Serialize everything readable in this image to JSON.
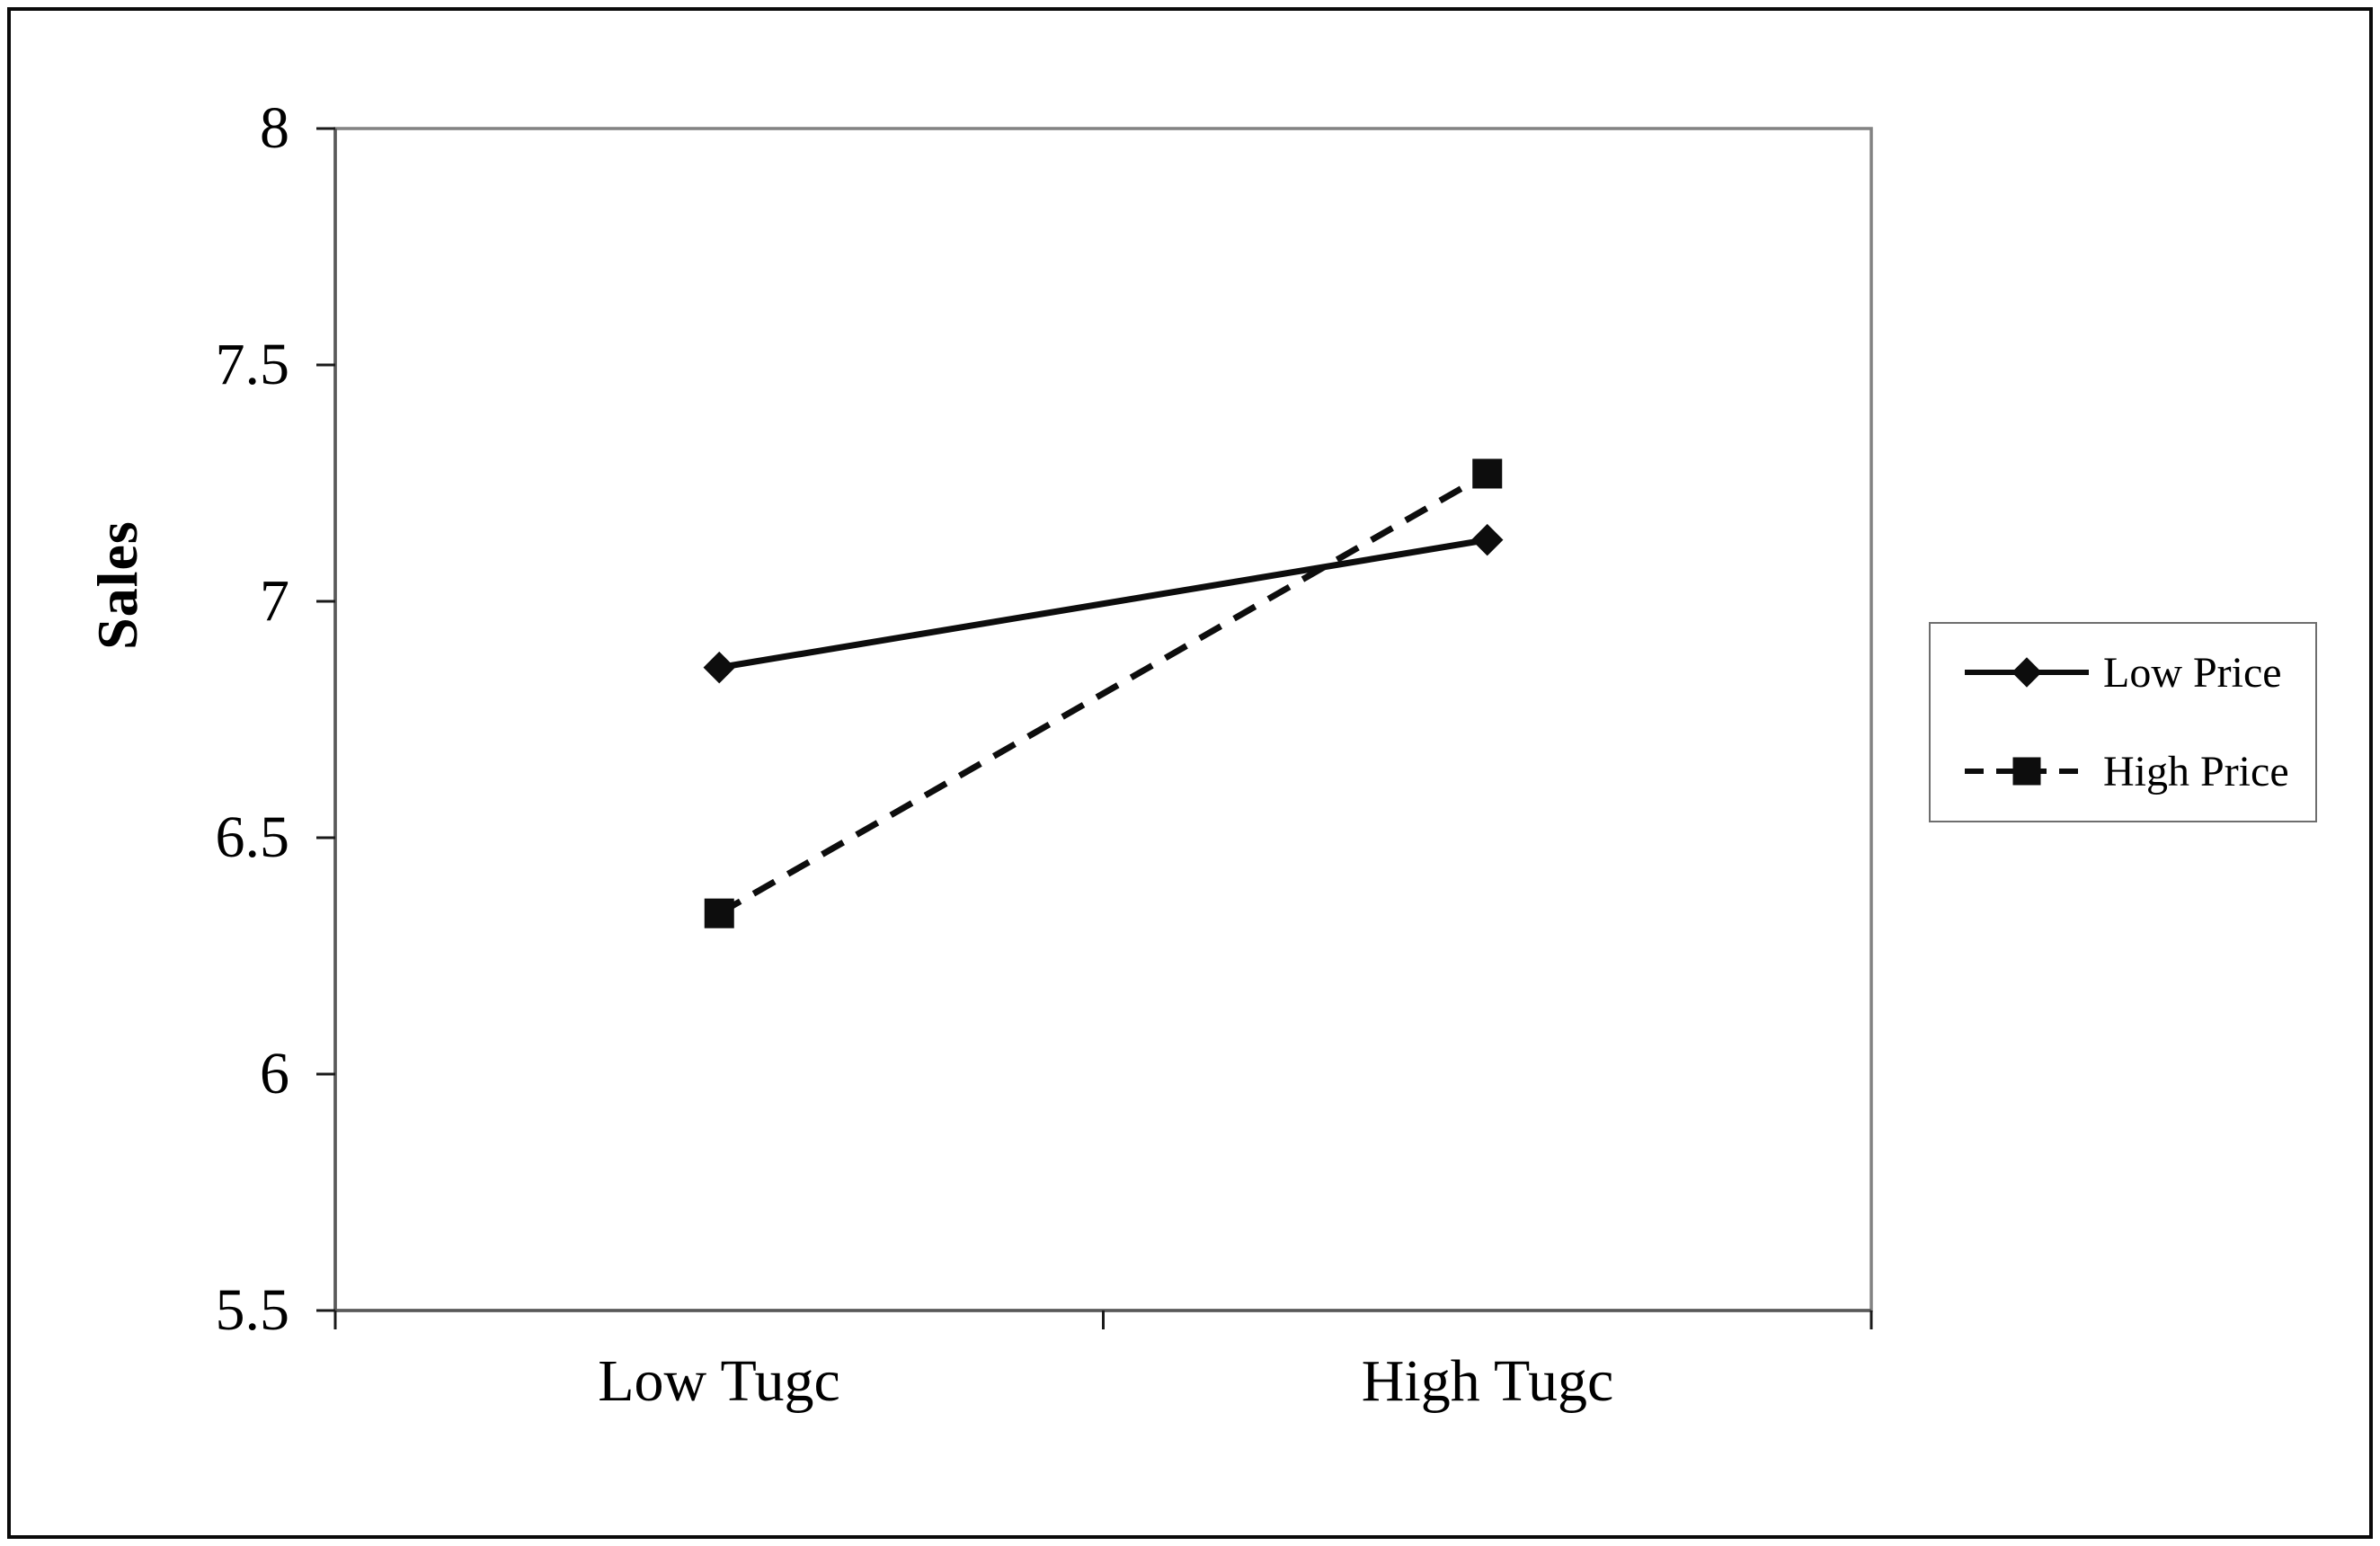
{
  "figure": {
    "background": "#ffffff",
    "outer_border_color": "#0a0a0a"
  },
  "chart_data": {
    "type": "line",
    "title": "",
    "xlabel": "",
    "ylabel": "Sales",
    "categories": [
      "Low Tugc",
      "High Tugc"
    ],
    "series": [
      {
        "name": "Low Price",
        "values": [
          6.86,
          7.13
        ],
        "line_style": "solid",
        "marker": "diamond",
        "color": "#0d0d0d"
      },
      {
        "name": "High Price",
        "values": [
          6.34,
          7.27
        ],
        "line_style": "dashed",
        "marker": "square",
        "color": "#0d0d0d"
      }
    ],
    "ylim": [
      5.5,
      8
    ],
    "yticks": [
      8,
      7.5,
      7,
      6.5,
      6,
      5.5
    ],
    "ytick_labels": [
      "8",
      "7.5",
      "7",
      "6.5",
      "6",
      "5.5"
    ],
    "grid": false,
    "legend_position": "right-outside",
    "plot_border_color": "#828282",
    "axis_color": "#595959",
    "tick_color": "#1a1a1a",
    "text_color": "#000000"
  }
}
